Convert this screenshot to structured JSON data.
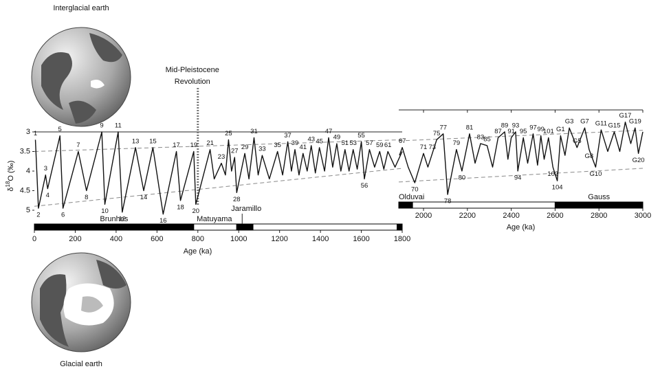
{
  "globes": [
    "Interglacial earth",
    "Glacial earth"
  ],
  "chart_data": [
    {
      "type": "line",
      "xlabel": "Age (ka)",
      "ylabel": {
        "symbol": "δ",
        "superscript": "18",
        "rest": "O (‰)"
      },
      "xlim": [
        0,
        1800
      ],
      "xticks": [
        0,
        200,
        400,
        600,
        800,
        1000,
        1200,
        1400,
        1600,
        1800
      ],
      "ylim": [
        3,
        5.25
      ],
      "yticks": [
        3,
        3.5,
        4,
        4.5,
        5
      ],
      "color": "#111111",
      "annotation": {
        "lines": [
          "Mid-Pleistocene",
          "Revolution"
        ],
        "x": 800
      },
      "polarity": [
        {
          "name": "Brunhes",
          "start": 0,
          "end": 780,
          "normal": true
        },
        {
          "name": "Matuyama",
          "start": 780,
          "end": 990,
          "normal": false
        },
        {
          "name": "Jaramillo",
          "start": 990,
          "end": 1070,
          "normal": true
        },
        {
          "name": null,
          "start": 1070,
          "end": 1775,
          "normal": false
        },
        {
          "name": null,
          "start": 1775,
          "end": 1800,
          "normal": true
        }
      ],
      "trend_lines": [
        {
          "x": [
            0,
            1800
          ],
          "values": [
            3.5,
            3.2
          ]
        },
        {
          "x": [
            0,
            1800
          ],
          "values": [
            4.9,
            3.93
          ]
        }
      ],
      "x": [
        5,
        20,
        55,
        65,
        125,
        140,
        215,
        255,
        330,
        345,
        410,
        430,
        495,
        535,
        580,
        630,
        695,
        715,
        780,
        790,
        860,
        880,
        915,
        935,
        950,
        965,
        980,
        990,
        1030,
        1050,
        1075,
        1095,
        1115,
        1150,
        1190,
        1215,
        1240,
        1258,
        1275,
        1295,
        1315,
        1335,
        1355,
        1375,
        1395,
        1420,
        1440,
        1460,
        1480,
        1500,
        1520,
        1540,
        1560,
        1580,
        1600,
        1615,
        1640,
        1665,
        1690,
        1710,
        1730,
        1765,
        1800
      ],
      "values": [
        3.2,
        4.95,
        4.1,
        4.45,
        3.1,
        4.95,
        3.5,
        4.5,
        3.0,
        4.85,
        3.0,
        5.05,
        3.4,
        4.5,
        3.4,
        5.1,
        3.5,
        4.75,
        3.5,
        4.85,
        3.45,
        4.2,
        3.8,
        4.1,
        3.2,
        4.0,
        3.65,
        4.55,
        3.55,
        4.2,
        3.15,
        4.1,
        3.6,
        4.2,
        3.5,
        4.1,
        3.25,
        4.0,
        3.45,
        4.1,
        3.55,
        4.0,
        3.35,
        4.05,
        3.4,
        4.0,
        3.15,
        3.9,
        3.3,
        4.0,
        3.45,
        4.0,
        3.45,
        3.95,
        3.25,
        4.2,
        3.45,
        3.9,
        3.5,
        3.95,
        3.5,
        3.9,
        3.5
      ],
      "point_labels": [
        "1",
        "2",
        "3",
        "4",
        "5",
        "6",
        "7",
        "8",
        "9",
        "10",
        "11",
        "12",
        "13",
        "14",
        "15",
        "16",
        "17",
        "18",
        "19",
        "20",
        "21",
        null,
        "23",
        null,
        "25",
        null,
        "27",
        "28",
        "29",
        null,
        "31",
        null,
        "33",
        null,
        "35",
        null,
        "37",
        null,
        "39",
        null,
        "41",
        null,
        "43",
        null,
        "45",
        null,
        "47",
        null,
        "49",
        null,
        "51",
        null,
        "53",
        null,
        "55",
        "56",
        "57",
        null,
        "59",
        null,
        "61",
        null,
        null
      ]
    },
    {
      "type": "line",
      "xlabel": "Age (ka)",
      "xlim": [
        1887,
        3000
      ],
      "xticks": [
        2000,
        2200,
        2400,
        2600,
        2800,
        3000
      ],
      "ylim": [
        2.44,
        4.75
      ],
      "color": "#111111",
      "polarity": [
        {
          "name": "Olduvai",
          "start": 1887,
          "end": 1950,
          "normal": true
        },
        {
          "name": null,
          "start": 1950,
          "end": 2600,
          "normal": false
        },
        {
          "name": "Gauss",
          "start": 2600,
          "end": 3000,
          "normal": true
        }
      ],
      "trend_lines": [
        {
          "x": [
            1887,
            3000
          ],
          "values": [
            3.23,
            2.96
          ]
        },
        {
          "x": [
            1887,
            3000
          ],
          "values": [
            4.28,
            3.93
          ]
        }
      ],
      "x": [
        1890,
        1903,
        1930,
        1960,
        2000,
        2020,
        2040,
        2060,
        2090,
        2110,
        2150,
        2175,
        2210,
        2235,
        2260,
        2290,
        2315,
        2340,
        2370,
        2385,
        2400,
        2420,
        2430,
        2455,
        2475,
        2500,
        2520,
        2535,
        2550,
        2570,
        2590,
        2610,
        2625,
        2645,
        2665,
        2700,
        2735,
        2755,
        2785,
        2810,
        2840,
        2870,
        2895,
        2920,
        2945,
        2965,
        2980,
        3000
      ],
      "values": [
        3.6,
        3.4,
        3.9,
        4.3,
        3.55,
        3.9,
        3.55,
        3.2,
        3.05,
        4.6,
        3.45,
        4.0,
        3.05,
        3.8,
        3.3,
        3.35,
        3.9,
        3.15,
        3.0,
        3.7,
        3.15,
        3.0,
        4.0,
        3.15,
        3.8,
        3.05,
        3.85,
        3.1,
        3.7,
        3.15,
        3.9,
        4.25,
        3.1,
        3.6,
        2.9,
        3.4,
        2.9,
        3.45,
        3.9,
        2.95,
        3.5,
        3.0,
        3.5,
        2.75,
        3.3,
        2.9,
        3.55,
        3.0
      ],
      "point_labels": [
        null,
        "67",
        null,
        "70",
        "71",
        null,
        "73",
        "75",
        "77",
        "78",
        "79",
        "80",
        "81",
        null,
        "83",
        "85",
        null,
        "87",
        "89",
        null,
        "91",
        "93",
        "94",
        "95",
        null,
        "97",
        null,
        "99",
        null,
        "101",
        "102",
        "104",
        "G1",
        null,
        "G3",
        "G5",
        "G7",
        "G8",
        "G10",
        "G11",
        null,
        "G15",
        null,
        "G17",
        null,
        "G19",
        "G20",
        null
      ]
    }
  ]
}
